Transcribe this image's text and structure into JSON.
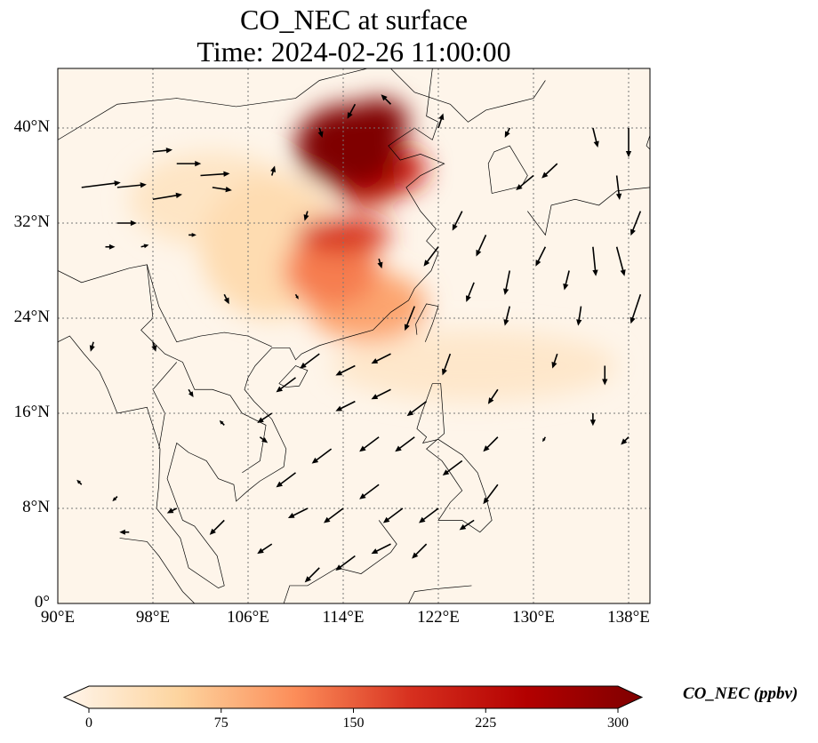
{
  "title": {
    "line1": "CO_NEC at surface",
    "line2": "Time: 2024-02-26 11:00:00"
  },
  "map": {
    "lon_range": [
      90,
      140
    ],
    "lat_range": [
      0,
      45
    ],
    "lat_ticks": [
      {
        "value": 0,
        "label": "0°"
      },
      {
        "value": 8,
        "label": "8°N"
      },
      {
        "value": 16,
        "label": "16°N"
      },
      {
        "value": 24,
        "label": "24°N"
      },
      {
        "value": 32,
        "label": "32°N"
      },
      {
        "value": 40,
        "label": "40°N"
      }
    ],
    "lon_ticks": [
      {
        "value": 90,
        "label": "90°E"
      },
      {
        "value": 98,
        "label": "98°E"
      },
      {
        "value": 106,
        "label": "106°E"
      },
      {
        "value": 114,
        "label": "114°E"
      },
      {
        "value": 122,
        "label": "122°E"
      },
      {
        "value": 130,
        "label": "130°E"
      },
      {
        "value": 138,
        "label": "138°E"
      }
    ],
    "background_color": "#fef5ea"
  },
  "colorbar": {
    "label": "CO_NEC (ppbv)",
    "min": 0,
    "max": 300,
    "ticks": [
      {
        "value": 0,
        "label": "0"
      },
      {
        "value": 75,
        "label": "75"
      },
      {
        "value": 150,
        "label": "150"
      },
      {
        "value": 225,
        "label": "225"
      },
      {
        "value": 300,
        "label": "300"
      }
    ],
    "colors": [
      "#fff5eb",
      "#fdd49e",
      "#fc8d59",
      "#d7301f",
      "#b30000",
      "#7f0000"
    ]
  },
  "co_hotspots": [
    {
      "lon": 114.5,
      "lat": 38.5,
      "value": 300,
      "rlon": 4.5,
      "rlat": 3.5
    },
    {
      "lon": 117,
      "lat": 40.5,
      "value": 300,
      "rlon": 2.5,
      "rlat": 2
    },
    {
      "lon": 116,
      "lat": 35.5,
      "value": 230,
      "rlon": 3,
      "rlat": 2
    },
    {
      "lon": 118,
      "lat": 36.5,
      "value": 200,
      "rlon": 3,
      "rlat": 2
    },
    {
      "lon": 114,
      "lat": 31,
      "value": 180,
      "rlon": 4,
      "rlat": 1.5
    },
    {
      "lon": 113,
      "lat": 28,
      "value": 130,
      "rlon": 4,
      "rlat": 3
    },
    {
      "lon": 116,
      "lat": 25,
      "value": 100,
      "rlon": 5,
      "rlat": 3
    },
    {
      "lon": 108,
      "lat": 30,
      "value": 45,
      "rlon": 6,
      "rlat": 6
    },
    {
      "lon": 103,
      "lat": 34,
      "value": 30,
      "rlon": 7,
      "rlat": 4
    },
    {
      "lon": 125,
      "lat": 20,
      "value": 25,
      "rlon": 12,
      "rlat": 3
    }
  ],
  "wind_vectors": [
    [
      92,
      35,
      4,
      0.5
    ],
    [
      95,
      35,
      3,
      0.3
    ],
    [
      98,
      34,
      3,
      0.5
    ],
    [
      102,
      36,
      3,
      0.2
    ],
    [
      95,
      32,
      2,
      0
    ],
    [
      98,
      38,
      2,
      0.2
    ],
    [
      103,
      35,
      2,
      -0.3
    ],
    [
      100,
      37,
      2.5,
      0
    ],
    [
      94,
      30,
      1,
      0
    ],
    [
      97,
      30,
      0.8,
      0.2
    ],
    [
      101,
      31,
      0.8,
      0
    ],
    [
      115,
      42,
      -0.8,
      -1.5
    ],
    [
      118,
      42,
      -1,
      1
    ],
    [
      122,
      40,
      0.5,
      1.5
    ],
    [
      128,
      40,
      -0.5,
      -1
    ],
    [
      130,
      36,
      -1.8,
      -1.5
    ],
    [
      132,
      37,
      -1.6,
      -1.5
    ],
    [
      135,
      40,
      0.5,
      -2
    ],
    [
      138,
      40,
      0,
      -3
    ],
    [
      137,
      36,
      0.3,
      -2.5
    ],
    [
      139,
      33,
      -1,
      -2.5
    ],
    [
      135,
      30,
      0.3,
      -3
    ],
    [
      137,
      30,
      0.8,
      -3
    ],
    [
      139,
      26,
      -1,
      -3
    ],
    [
      133,
      28,
      -0.5,
      -2
    ],
    [
      131,
      30,
      -1,
      -2
    ],
    [
      128,
      28,
      -0.5,
      -2.5
    ],
    [
      128,
      25,
      -0.5,
      -2
    ],
    [
      125,
      27,
      -0.8,
      -2
    ],
    [
      134,
      25,
      -0.3,
      -2
    ],
    [
      136,
      20,
      0,
      -2
    ],
    [
      132,
      21,
      -0.5,
      -1.5
    ],
    [
      127,
      18,
      -1,
      -1.5
    ],
    [
      123,
      21,
      -0.8,
      -2.2
    ],
    [
      120,
      25,
      -1,
      -2.5
    ],
    [
      118,
      21,
      -2,
      -1
    ],
    [
      115,
      20,
      -2,
      -1
    ],
    [
      112,
      21,
      -2,
      -1.5
    ],
    [
      110,
      19,
      -2,
      -1.5
    ],
    [
      115,
      17,
      -2,
      -1
    ],
    [
      118,
      18,
      -2,
      -1
    ],
    [
      121,
      17,
      -2,
      -1.5
    ],
    [
      120,
      14,
      -2,
      -1.5
    ],
    [
      117,
      14,
      -2,
      -1.5
    ],
    [
      113,
      13,
      -2,
      -1.5
    ],
    [
      110,
      11,
      -2,
      -1.5
    ],
    [
      111,
      8,
      -2,
      -1
    ],
    [
      114,
      8,
      -2,
      -1.5
    ],
    [
      117,
      10,
      -2,
      -1.5
    ],
    [
      119,
      8,
      -2,
      -1.5
    ],
    [
      122,
      8,
      -2,
      -1.5
    ],
    [
      124,
      12,
      -2,
      -1.5
    ],
    [
      127,
      14,
      -1.5,
      -1.5
    ],
    [
      127,
      10,
      -1.5,
      -2
    ],
    [
      115,
      4,
      -2,
      -1.5
    ],
    [
      112,
      3,
      -1.5,
      -1.5
    ],
    [
      118,
      5,
      -2,
      -1
    ],
    [
      121,
      5,
      -1.5,
      -1.5
    ],
    [
      125,
      7,
      -1.5,
      -1
    ],
    [
      108,
      5,
      -1.5,
      -1
    ],
    [
      104,
      7,
      -1.5,
      -1.5
    ],
    [
      100,
      8,
      -1,
      -0.5
    ],
    [
      96,
      6,
      -1,
      0
    ],
    [
      92,
      10,
      -0.5,
      0.5
    ],
    [
      95,
      9,
      -0.5,
      -0.5
    ],
    [
      93,
      22,
      -0.3,
      -1
    ],
    [
      98,
      22,
      0.3,
      -1
    ],
    [
      101,
      18,
      0.5,
      -0.8
    ],
    [
      104,
      15,
      -0.5,
      0.5
    ],
    [
      108,
      16,
      -1.5,
      -1
    ],
    [
      107,
      14,
      0.8,
      -0.6
    ],
    [
      135,
      16,
      0,
      -1.3
    ],
    [
      138,
      14,
      -0.8,
      -0.8
    ],
    [
      131,
      14,
      -0.3,
      -0.5
    ],
    [
      104,
      26,
      0.5,
      -1
    ],
    [
      110,
      26,
      0.3,
      -0.5
    ],
    [
      117,
      29,
      0.3,
      -1
    ],
    [
      122,
      30,
      -1.5,
      -2
    ],
    [
      124,
      33,
      -1,
      -2
    ],
    [
      126,
      31,
      -1,
      -2.2
    ],
    [
      111,
      33,
      -0.3,
      -1
    ],
    [
      108,
      36,
      0.3,
      1
    ],
    [
      112,
      40,
      0.3,
      -1
    ]
  ]
}
